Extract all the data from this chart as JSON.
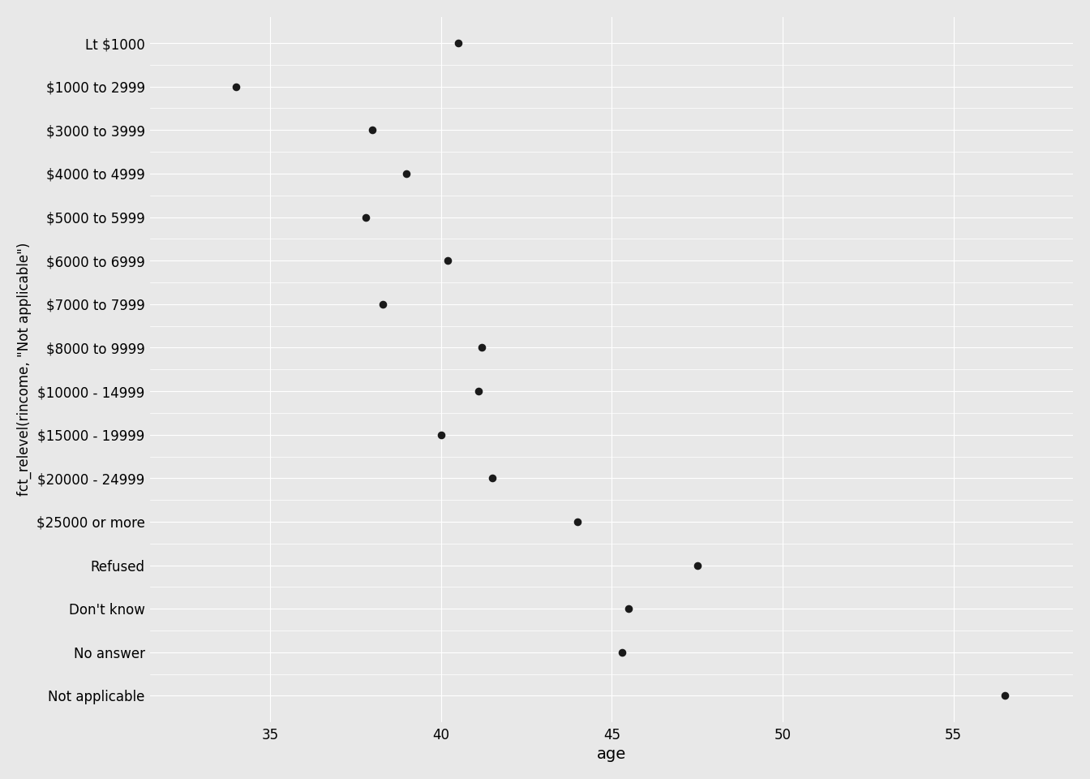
{
  "categories": [
    "Not applicable",
    "No answer",
    "Don't know",
    "Refused",
    "$25000 or more",
    "$20000 - 24999",
    "$15000 - 19999",
    "$10000 - 14999",
    "$8000 to 9999",
    "$7000 to 7999",
    "$6000 to 6999",
    "$5000 to 5999",
    "$4000 to 4999",
    "$3000 to 3999",
    "$1000 to 2999",
    "Lt $1000"
  ],
  "age_values": [
    56.5,
    45.3,
    45.5,
    47.5,
    44.0,
    41.5,
    40.0,
    41.1,
    41.2,
    38.3,
    40.2,
    37.8,
    39.0,
    38.0,
    34.0,
    40.5
  ],
  "point_color": "#1a1a1a",
  "point_size": 35,
  "background_color": "#e8e8e8",
  "grid_color": "#ffffff",
  "xlabel": "age",
  "ylabel": "fct_relevel(rincome, \"Not applicable\")",
  "xlim": [
    31.5,
    58.5
  ],
  "xticks": [
    35,
    40,
    45,
    50,
    55
  ],
  "axis_label_fontsize": 14,
  "tick_fontsize": 12,
  "ylabel_fontsize": 12
}
